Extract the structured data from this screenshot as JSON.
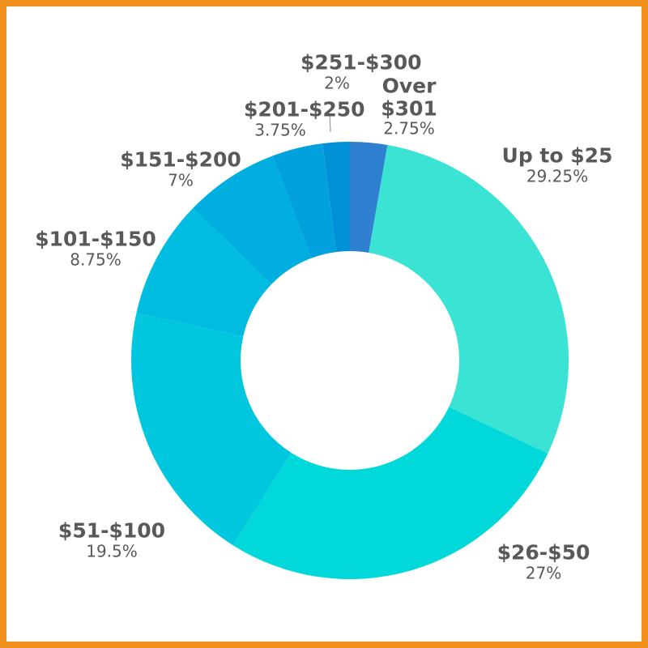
{
  "chart_data": {
    "type": "pie",
    "donut": true,
    "categories": [
      "Over $301",
      "Up to $25",
      "$26-$50",
      "$51-$100",
      "$101-$150",
      "$151-$200",
      "$201-$250",
      "$251-$300"
    ],
    "values": [
      2.75,
      29.25,
      27,
      19.5,
      8.75,
      7,
      3.75,
      2
    ],
    "value_labels": [
      "2.75%",
      "29.25%",
      "27%",
      "19.5%",
      "8.75%",
      "7%",
      "3.75%",
      "2%"
    ],
    "colors": [
      "#2f80d0",
      "#3be3d4",
      "#00d8d9",
      "#00c7dd",
      "#00bce0",
      "#00afdf",
      "#00a1dc",
      "#0090d7"
    ]
  }
}
